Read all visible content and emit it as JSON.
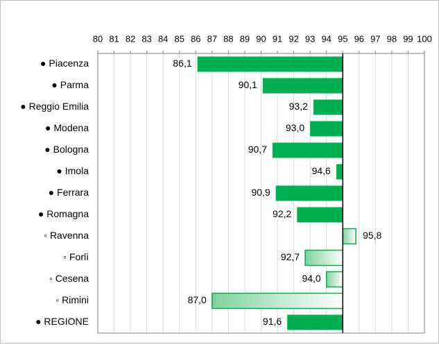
{
  "chart_data": {
    "type": "bar",
    "orientation": "horizontal",
    "categories": [
      "● Piacenza",
      "● Parma",
      "● Reggio Emilia",
      "● Modena",
      "● Bologna",
      "● Imola",
      "● Ferrara",
      "● Romagna",
      "◦ Ravenna",
      "◦ Forlì",
      "◦ Cesena",
      "◦ Rimini",
      "● REGIONE"
    ],
    "values": [
      86.1,
      90.1,
      93.2,
      93.0,
      90.7,
      94.6,
      90.9,
      92.2,
      95.8,
      92.7,
      94.0,
      87.0,
      91.6
    ],
    "value_labels": [
      "86,1",
      "90,1",
      "93,2",
      "93,0",
      "90,7",
      "94,6",
      "90,9",
      "92,2",
      "95,8",
      "92,7",
      "94,0",
      "87,0",
      "91,6"
    ],
    "bar_styles": [
      "solid",
      "solid",
      "solid",
      "solid",
      "solid",
      "solid",
      "solid",
      "solid",
      "gradient",
      "gradient",
      "gradient",
      "gradient",
      "solid"
    ],
    "color": "#00b050",
    "baseline": 95,
    "xlim": [
      80,
      100
    ],
    "xticks": [
      80,
      81,
      82,
      83,
      84,
      85,
      86,
      87,
      88,
      89,
      90,
      91,
      92,
      93,
      94,
      95,
      96,
      97,
      98,
      99,
      100
    ],
    "grid": true
  }
}
